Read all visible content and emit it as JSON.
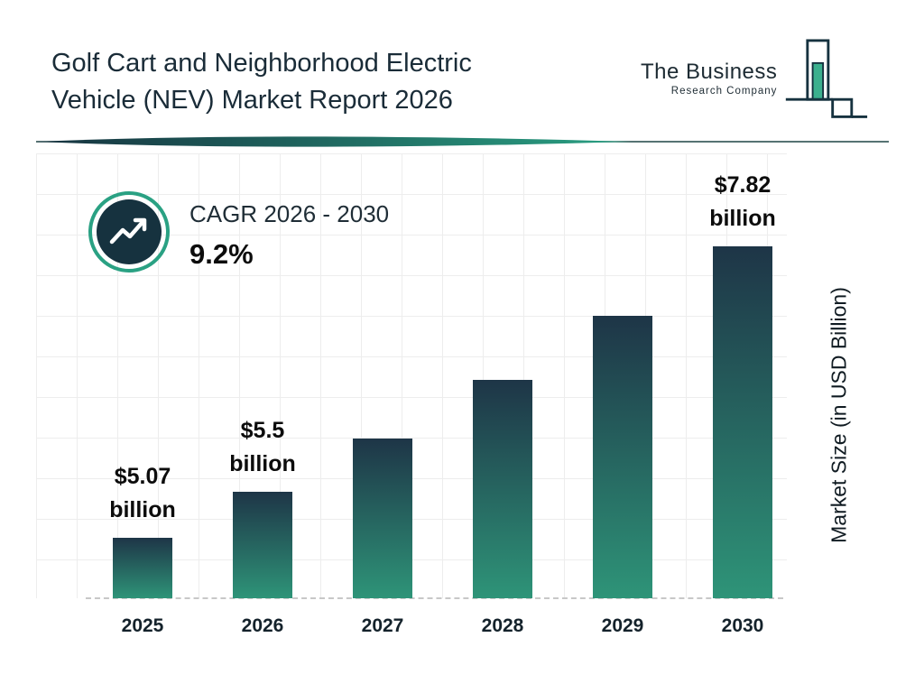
{
  "header": {
    "title_line1": "Golf Cart and Neighborhood Electric",
    "title_line2": "Vehicle (NEV) Market Report 2026",
    "logo": {
      "line1": "The Business",
      "line2": "Research Company"
    }
  },
  "cagr": {
    "label": "CAGR 2026 - 2030",
    "value": "9.2%"
  },
  "chart_data": {
    "type": "bar",
    "title": "Golf Cart and Neighborhood Electric Vehicle (NEV) Market Report 2026",
    "categories": [
      "2025",
      "2026",
      "2027",
      "2028",
      "2029",
      "2030"
    ],
    "values": [
      5.07,
      5.5,
      6.01,
      6.56,
      7.16,
      7.82
    ],
    "labels": [
      {
        "amount": "$5.07",
        "unit": "billion"
      },
      {
        "amount": "$5.5",
        "unit": "billion"
      },
      null,
      null,
      null,
      {
        "amount": "$7.82",
        "unit": "billion"
      }
    ],
    "xlabel": "",
    "ylabel": "Market Size (in USD Billion)",
    "ylim": [
      4.5,
      8.0
    ],
    "grid": true,
    "legend": "none",
    "colors": {
      "bar_top": "#1e3547",
      "bar_bottom": "#2e9478",
      "accent_teal": "#2aa183",
      "navy": "#16323f"
    }
  }
}
